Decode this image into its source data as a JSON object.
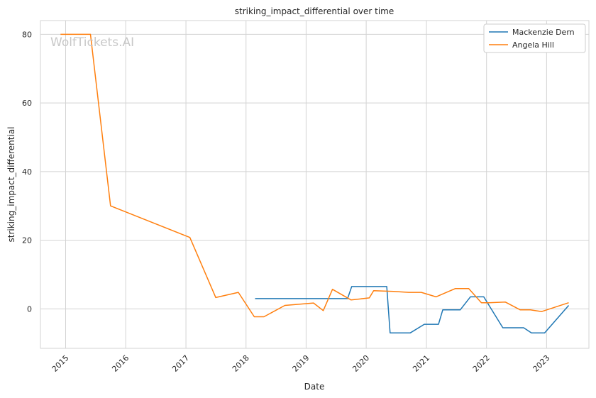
{
  "chart_data": {
    "type": "line",
    "title": "striking_impact_differential over time",
    "xlabel": "Date",
    "ylabel": "striking_impact_differential",
    "watermark": "WolfTickets.AI",
    "xlim": [
      "2014-08-01",
      "2023-09-15"
    ],
    "ylim": [
      -11.5,
      84
    ],
    "x_ticks": [
      "2015",
      "2016",
      "2017",
      "2018",
      "2019",
      "2020",
      "2021",
      "2022",
      "2023"
    ],
    "y_ticks": [
      0,
      20,
      40,
      60,
      80
    ],
    "grid": true,
    "legend_position": "top-right",
    "series": [
      {
        "name": "Mackenzie Dern",
        "color": "#1f77b4",
        "x": [
          "2018-02-25",
          "2019-09-10",
          "2019-10-05",
          "2020-05-05",
          "2020-05-25",
          "2020-09-25",
          "2020-12-19",
          "2021-03-15",
          "2021-04-10",
          "2021-07-25",
          "2021-09-25",
          "2021-12-15",
          "2022-04-10",
          "2022-08-15",
          "2022-10-01",
          "2022-12-20",
          "2023-05-15"
        ],
        "values": [
          3,
          3,
          6.5,
          6.5,
          -7,
          -7,
          -4.5,
          -4.5,
          -0.3,
          -0.3,
          3.5,
          3.5,
          -5.5,
          -5.5,
          -7,
          -7,
          1
        ]
      },
      {
        "name": "Angela Hill",
        "color": "#ff7f0e",
        "x": [
          "2014-12-01",
          "2015-06-01",
          "2015-10-01",
          "2017-01-25",
          "2017-07-01",
          "2017-11-15",
          "2018-02-20",
          "2018-04-20",
          "2018-08-25",
          "2019-02-15",
          "2019-04-15",
          "2019-06-10",
          "2019-10-01",
          "2020-01-20",
          "2020-02-15",
          "2020-06-15",
          "2020-09-15",
          "2020-12-01",
          "2021-02-28",
          "2021-06-25",
          "2021-09-15",
          "2021-12-01",
          "2022-01-15",
          "2022-04-25",
          "2022-07-25",
          "2022-09-25",
          "2022-12-01",
          "2023-05-15"
        ],
        "values": [
          80,
          80,
          30,
          20.8,
          3.3,
          4.8,
          -2.3,
          -2.3,
          1,
          1.7,
          -0.5,
          5.7,
          2.6,
          3.2,
          5.3,
          5.1,
          4.8,
          4.8,
          3.5,
          5.9,
          5.9,
          1.8,
          1.8,
          2,
          -0.3,
          -0.3,
          -0.8,
          1.8
        ]
      }
    ]
  }
}
